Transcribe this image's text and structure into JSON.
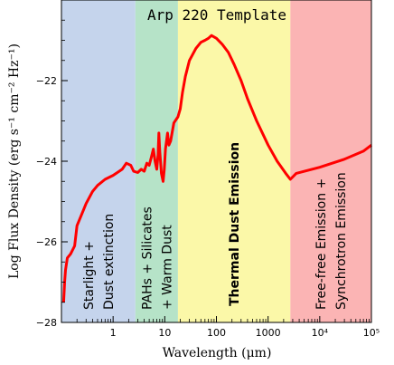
{
  "chart_data": {
    "type": "line",
    "title": "Arp 220 Template",
    "xlabel": "Wavelength (μm)",
    "ylabel": "Log Flux Density (erg s⁻¹ cm⁻² Hz⁻¹)",
    "x_scale": "log",
    "xlim": [
      0.1,
      100000
    ],
    "ylim": [
      -28,
      -20
    ],
    "x_ticks": [
      {
        "value": 1,
        "label": "1"
      },
      {
        "value": 10,
        "label": "10"
      },
      {
        "value": 100,
        "label": "100"
      },
      {
        "value": 1000,
        "label": "1000"
      },
      {
        "value": 10000,
        "label": "10⁴"
      },
      {
        "value": 100000,
        "label": "10⁵"
      }
    ],
    "y_ticks": [
      {
        "value": -28,
        "label": "−28"
      },
      {
        "value": -26,
        "label": "−26"
      },
      {
        "value": -24,
        "label": "−24"
      },
      {
        "value": -22,
        "label": "−22"
      }
    ],
    "regions": [
      {
        "xmin": 0.1,
        "xmax": 2.7,
        "color": "#c5d4ec",
        "lines": [
          "Starlight +",
          "Dust extinction"
        ],
        "bold": false
      },
      {
        "xmin": 2.7,
        "xmax": 18,
        "color": "#b6e3c8",
        "lines": [
          "PAHs + Silicates",
          "+ Warm Dust"
        ],
        "bold": false
      },
      {
        "xmin": 18,
        "xmax": 2700,
        "color": "#fbf8a8",
        "lines": [
          "Thermal Dust Emission"
        ],
        "bold": true
      },
      {
        "xmin": 2700,
        "xmax": 100000,
        "color": "#fbb4b4",
        "lines": [
          "Free-free Emission +",
          "Synchrotron Emission"
        ],
        "bold": false
      }
    ],
    "series": [
      {
        "color": "#ff0000",
        "points": [
          [
            0.11,
            -27.5
          ],
          [
            0.115,
            -27.0
          ],
          [
            0.12,
            -26.7
          ],
          [
            0.13,
            -26.4
          ],
          [
            0.15,
            -26.3
          ],
          [
            0.18,
            -26.1
          ],
          [
            0.2,
            -25.6
          ],
          [
            0.25,
            -25.3
          ],
          [
            0.3,
            -25.05
          ],
          [
            0.4,
            -24.75
          ],
          [
            0.5,
            -24.6
          ],
          [
            0.7,
            -24.45
          ],
          [
            1.0,
            -24.35
          ],
          [
            1.5,
            -24.2
          ],
          [
            1.8,
            -24.05
          ],
          [
            2.2,
            -24.1
          ],
          [
            2.5,
            -24.25
          ],
          [
            3.0,
            -24.28
          ],
          [
            3.5,
            -24.2
          ],
          [
            4.0,
            -24.25
          ],
          [
            4.5,
            -24.05
          ],
          [
            5.0,
            -24.1
          ],
          [
            5.5,
            -23.9
          ],
          [
            6.0,
            -23.7
          ],
          [
            6.5,
            -24.0
          ],
          [
            7.0,
            -24.2
          ],
          [
            7.4,
            -23.85
          ],
          [
            7.7,
            -23.3
          ],
          [
            8.0,
            -23.75
          ],
          [
            8.6,
            -24.3
          ],
          [
            9.3,
            -24.5
          ],
          [
            9.8,
            -24.2
          ],
          [
            10.3,
            -23.7
          ],
          [
            11.3,
            -23.3
          ],
          [
            12.0,
            -23.6
          ],
          [
            13.0,
            -23.5
          ],
          [
            15.0,
            -23.05
          ],
          [
            18.0,
            -22.9
          ],
          [
            20.0,
            -22.7
          ],
          [
            22.0,
            -22.3
          ],
          [
            25.0,
            -21.9
          ],
          [
            30.0,
            -21.5
          ],
          [
            40.0,
            -21.2
          ],
          [
            50.0,
            -21.05
          ],
          [
            60.0,
            -21.0
          ],
          [
            70.0,
            -20.95
          ],
          [
            80.0,
            -20.88
          ],
          [
            100.0,
            -20.95
          ],
          [
            130.0,
            -21.1
          ],
          [
            170.0,
            -21.3
          ],
          [
            220.0,
            -21.6
          ],
          [
            300.0,
            -22.0
          ],
          [
            400.0,
            -22.45
          ],
          [
            600.0,
            -23.0
          ],
          [
            1000.0,
            -23.6
          ],
          [
            1500.0,
            -24.0
          ],
          [
            2200.0,
            -24.3
          ],
          [
            2700.0,
            -24.45
          ],
          [
            3500.0,
            -24.3
          ],
          [
            10000.0,
            -24.15
          ],
          [
            30000.0,
            -23.95
          ],
          [
            70000.0,
            -23.75
          ],
          [
            100000.0,
            -23.6
          ]
        ]
      }
    ]
  }
}
